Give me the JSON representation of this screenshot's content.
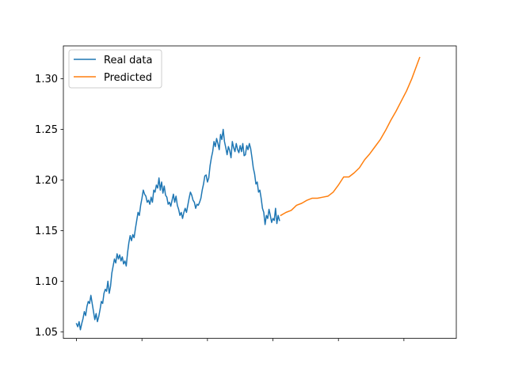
{
  "chart_data": {
    "type": "line",
    "title": "",
    "xlabel": "",
    "ylabel": "",
    "xlim": [
      -10,
      290
    ],
    "ylim": [
      1.0435,
      1.3325
    ],
    "x_tick_positions": [
      0,
      50,
      100,
      150,
      200,
      250
    ],
    "y_ticks": [
      1.05,
      1.1,
      1.15,
      1.2,
      1.25,
      1.3
    ],
    "y_tick_labels": [
      "1.05",
      "1.10",
      "1.15",
      "1.20",
      "1.25",
      "1.30"
    ],
    "grid": false,
    "legend_position": "upper-left",
    "series": [
      {
        "name": "Real data",
        "color": "#1f77b4",
        "points": [
          [
            0,
            1.058
          ],
          [
            1,
            1.055
          ],
          [
            2,
            1.06
          ],
          [
            3,
            1.052
          ],
          [
            4,
            1.058
          ],
          [
            5,
            1.063
          ],
          [
            6,
            1.07
          ],
          [
            7,
            1.066
          ],
          [
            8,
            1.075
          ],
          [
            9,
            1.08
          ],
          [
            10,
            1.078
          ],
          [
            11,
            1.086
          ],
          [
            12,
            1.078
          ],
          [
            13,
            1.07
          ],
          [
            14,
            1.062
          ],
          [
            15,
            1.068
          ],
          [
            16,
            1.06
          ],
          [
            17,
            1.065
          ],
          [
            18,
            1.072
          ],
          [
            19,
            1.08
          ],
          [
            20,
            1.078
          ],
          [
            21,
            1.088
          ],
          [
            22,
            1.092
          ],
          [
            23,
            1.09
          ],
          [
            24,
            1.1
          ],
          [
            25,
            1.088
          ],
          [
            26,
            1.095
          ],
          [
            27,
            1.108
          ],
          [
            28,
            1.115
          ],
          [
            29,
            1.122
          ],
          [
            30,
            1.118
          ],
          [
            31,
            1.127
          ],
          [
            32,
            1.122
          ],
          [
            33,
            1.126
          ],
          [
            34,
            1.12
          ],
          [
            35,
            1.124
          ],
          [
            36,
            1.117
          ],
          [
            37,
            1.12
          ],
          [
            38,
            1.115
          ],
          [
            39,
            1.128
          ],
          [
            40,
            1.138
          ],
          [
            41,
            1.145
          ],
          [
            42,
            1.14
          ],
          [
            43,
            1.146
          ],
          [
            44,
            1.143
          ],
          [
            45,
            1.152
          ],
          [
            46,
            1.16
          ],
          [
            47,
            1.168
          ],
          [
            48,
            1.165
          ],
          [
            49,
            1.175
          ],
          [
            50,
            1.182
          ],
          [
            51,
            1.19
          ],
          [
            52,
            1.186
          ],
          [
            53,
            1.184
          ],
          [
            54,
            1.178
          ],
          [
            55,
            1.18
          ],
          [
            56,
            1.176
          ],
          [
            57,
            1.183
          ],
          [
            58,
            1.178
          ],
          [
            59,
            1.19
          ],
          [
            60,
            1.188
          ],
          [
            61,
            1.195
          ],
          [
            62,
            1.192
          ],
          [
            63,
            1.202
          ],
          [
            64,
            1.19
          ],
          [
            65,
            1.198
          ],
          [
            66,
            1.187
          ],
          [
            67,
            1.194
          ],
          [
            68,
            1.185
          ],
          [
            69,
            1.183
          ],
          [
            70,
            1.176
          ],
          [
            71,
            1.178
          ],
          [
            72,
            1.174
          ],
          [
            73,
            1.18
          ],
          [
            74,
            1.186
          ],
          [
            75,
            1.178
          ],
          [
            76,
            1.184
          ],
          [
            77,
            1.175
          ],
          [
            78,
            1.171
          ],
          [
            79,
            1.165
          ],
          [
            80,
            1.168
          ],
          [
            81,
            1.162
          ],
          [
            82,
            1.168
          ],
          [
            83,
            1.172
          ],
          [
            84,
            1.168
          ],
          [
            85,
            1.175
          ],
          [
            86,
            1.182
          ],
          [
            87,
            1.188
          ],
          [
            88,
            1.185
          ],
          [
            89,
            1.18
          ],
          [
            90,
            1.178
          ],
          [
            91,
            1.172
          ],
          [
            92,
            1.176
          ],
          [
            93,
            1.175
          ],
          [
            94,
            1.178
          ],
          [
            95,
            1.182
          ],
          [
            96,
            1.19
          ],
          [
            97,
            1.196
          ],
          [
            98,
            1.204
          ],
          [
            99,
            1.205
          ],
          [
            100,
            1.198
          ],
          [
            101,
            1.202
          ],
          [
            102,
            1.214
          ],
          [
            103,
            1.222
          ],
          [
            104,
            1.228
          ],
          [
            105,
            1.238
          ],
          [
            106,
            1.233
          ],
          [
            107,
            1.241
          ],
          [
            108,
            1.236
          ],
          [
            109,
            1.23
          ],
          [
            110,
            1.245
          ],
          [
            111,
            1.24
          ],
          [
            112,
            1.25
          ],
          [
            113,
            1.238
          ],
          [
            114,
            1.232
          ],
          [
            115,
            1.225
          ],
          [
            116,
            1.233
          ],
          [
            117,
            1.229
          ],
          [
            118,
            1.222
          ],
          [
            119,
            1.238
          ],
          [
            120,
            1.232
          ],
          [
            121,
            1.228
          ],
          [
            122,
            1.236
          ],
          [
            123,
            1.23
          ],
          [
            124,
            1.227
          ],
          [
            125,
            1.234
          ],
          [
            126,
            1.228
          ],
          [
            127,
            1.236
          ],
          [
            128,
            1.224
          ],
          [
            129,
            1.225
          ],
          [
            130,
            1.234
          ],
          [
            131,
            1.23
          ],
          [
            132,
            1.236
          ],
          [
            133,
            1.231
          ],
          [
            134,
            1.222
          ],
          [
            135,
            1.212
          ],
          [
            136,
            1.206
          ],
          [
            137,
            1.196
          ],
          [
            138,
            1.198
          ],
          [
            139,
            1.188
          ],
          [
            140,
            1.19
          ],
          [
            141,
            1.182
          ],
          [
            142,
            1.172
          ],
          [
            143,
            1.168
          ],
          [
            144,
            1.156
          ],
          [
            145,
            1.165
          ],
          [
            146,
            1.162
          ],
          [
            147,
            1.171
          ],
          [
            148,
            1.165
          ],
          [
            149,
            1.158
          ],
          [
            150,
            1.162
          ],
          [
            151,
            1.16
          ],
          [
            152,
            1.172
          ],
          [
            153,
            1.157
          ],
          [
            154,
            1.165
          ],
          [
            155,
            1.16
          ]
        ]
      },
      {
        "name": "Predicted",
        "color": "#ff7f0e",
        "points": [
          [
            156,
            1.165
          ],
          [
            160,
            1.168
          ],
          [
            164,
            1.17
          ],
          [
            168,
            1.175
          ],
          [
            172,
            1.177
          ],
          [
            176,
            1.18
          ],
          [
            180,
            1.182
          ],
          [
            184,
            1.182
          ],
          [
            188,
            1.183
          ],
          [
            192,
            1.184
          ],
          [
            196,
            1.188
          ],
          [
            200,
            1.195
          ],
          [
            204,
            1.203
          ],
          [
            208,
            1.203
          ],
          [
            212,
            1.207
          ],
          [
            216,
            1.212
          ],
          [
            220,
            1.22
          ],
          [
            224,
            1.226
          ],
          [
            228,
            1.233
          ],
          [
            232,
            1.24
          ],
          [
            236,
            1.249
          ],
          [
            240,
            1.259
          ],
          [
            244,
            1.268
          ],
          [
            248,
            1.278
          ],
          [
            252,
            1.288
          ],
          [
            256,
            1.3
          ],
          [
            260,
            1.314
          ],
          [
            262,
            1.321
          ]
        ]
      }
    ]
  }
}
